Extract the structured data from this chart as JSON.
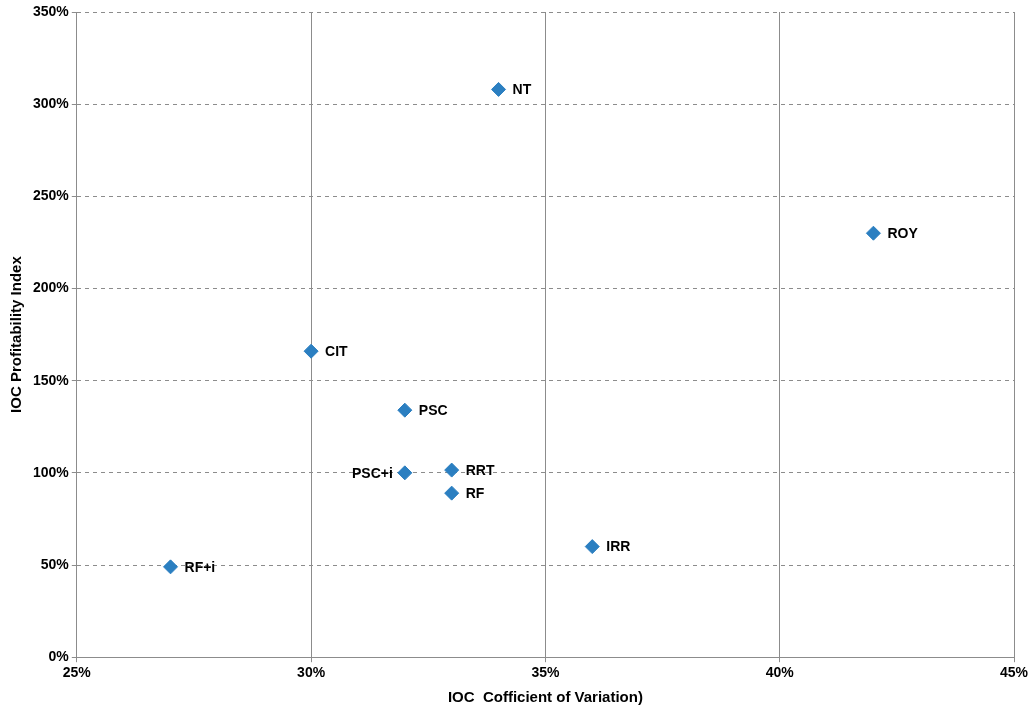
{
  "chart_data": {
    "type": "scatter",
    "xlabel": "IOC  Cofficient of Variation)",
    "ylabel": "IOC Profitability Index",
    "x": [
      34,
      42,
      30,
      32,
      32,
      33,
      33,
      36,
      27
    ],
    "series": [
      {
        "color": "#2b7fc1",
        "values": [
          308,
          230,
          166,
          134,
          100,
          101.5,
          89,
          60,
          49
        ]
      }
    ],
    "xlim": [
      25,
      45
    ],
    "xticks": [
      {
        "value": 25,
        "label": "25%"
      },
      {
        "value": 30,
        "label": "30%"
      },
      {
        "value": 35,
        "label": "35%"
      },
      {
        "value": 40,
        "label": "40%"
      },
      {
        "value": 45,
        "label": "45%"
      }
    ],
    "ylim": [
      0,
      350
    ],
    "yticks": [
      {
        "value": 0,
        "label": "0%"
      },
      {
        "value": 50,
        "label": "50%"
      },
      {
        "value": 100,
        "label": "100%"
      },
      {
        "value": 150,
        "label": "150%"
      },
      {
        "value": 200,
        "label": "200%"
      },
      {
        "value": 250,
        "label": "250%"
      },
      {
        "value": 300,
        "label": "300%"
      },
      {
        "value": 350,
        "label": "350%"
      }
    ],
    "grid": true,
    "legend": false,
    "marker": "diamond",
    "annotations": [
      {
        "text": "NT",
        "x": 34,
        "y": 308
      },
      {
        "text": "ROY",
        "x": 42,
        "y": 230
      },
      {
        "text": "CIT",
        "x": 30,
        "y": 166
      },
      {
        "text": "PSC",
        "x": 32,
        "y": 134
      },
      {
        "text": "PSC+i",
        "x": 32,
        "y": 100
      },
      {
        "text": "RRT",
        "x": 33,
        "y": 101.5
      },
      {
        "text": "RF",
        "x": 33,
        "y": 89
      },
      {
        "text": "IRR",
        "x": 36,
        "y": 60
      },
      {
        "text": "RF+i",
        "x": 27,
        "y": 49
      }
    ]
  }
}
